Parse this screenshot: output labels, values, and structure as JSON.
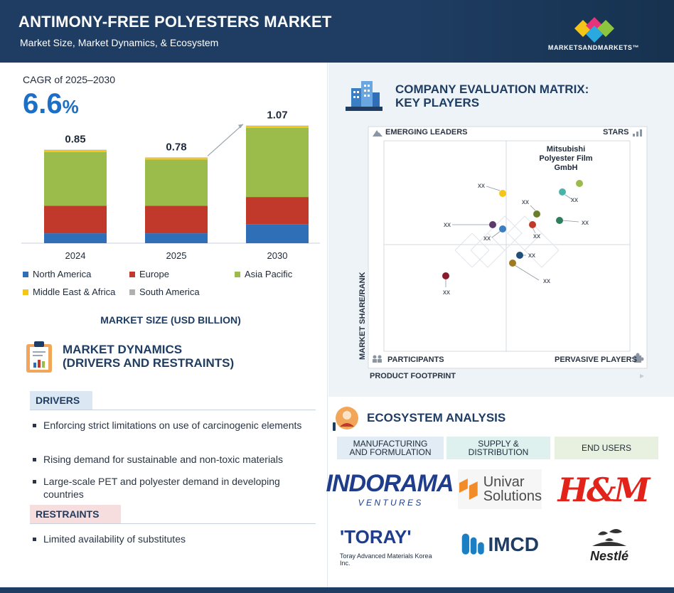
{
  "header": {
    "title": "ANTIMONY-FREE POLYESTERS MARKET",
    "subtitle": "Market Size, Market Dynamics, & Ecosystem",
    "logo_text": "MARKETSANDMARKETS™"
  },
  "cagr": {
    "label": "CAGR of 2025–2030",
    "value": "6.6",
    "unit": "%"
  },
  "chart_data": {
    "type": "bar",
    "stacked": true,
    "categories": [
      "2024",
      "2025",
      "2030"
    ],
    "totals_labels": [
      "0.85",
      "0.78",
      "1.07"
    ],
    "totals": [
      0.85,
      0.78,
      1.07
    ],
    "series": [
      {
        "name": "North America",
        "color": "#2f6fb7",
        "values": [
          0.09,
          0.09,
          0.17
        ]
      },
      {
        "name": "Europe",
        "color": "#c0392b",
        "values": [
          0.25,
          0.25,
          0.25
        ]
      },
      {
        "name": "Asia Pacific",
        "color": "#9bbb4a",
        "values": [
          0.49,
          0.42,
          0.63
        ]
      },
      {
        "name": "Middle East & Africa",
        "color": "#f5c518",
        "values": [
          0.015,
          0.015,
          0.018
        ]
      },
      {
        "name": "South America",
        "color": "#b0b0b0",
        "values": [
          0.005,
          0.005,
          0.002
        ]
      }
    ],
    "ylim": [
      0,
      1.1
    ],
    "title": "MARKET SIZE (USD BILLION)",
    "grid": false,
    "legend_placement": "bottom"
  },
  "dynamics": {
    "title_line1": "MARKET DYNAMICS",
    "title_line2": "(DRIVERS AND RESTRAINTS)",
    "drivers_label": "DRIVERS",
    "drivers": [
      "Enforcing strict limitations on use of carcinogenic elements",
      "Rising demand for sustainable and non-toxic materials",
      "Large-scale PET and polyester demand in developing countries"
    ],
    "restraints_label": "RESTRAINTS",
    "restraints": [
      "Limited availability of substitutes"
    ]
  },
  "matrix": {
    "title_line1": "COMPANY EVALUATION MATRIX:",
    "title_line2": "KEY PLAYERS",
    "quadrants": {
      "top_left": "EMERGING LEADERS",
      "top_right": "STARS",
      "bottom_left": "PARTICIPANTS",
      "bottom_right": "PERVASIVE PLAYERS"
    },
    "y_axis": "MARKET SHARE/RANK",
    "x_axis": "PRODUCT FOOTPRINT",
    "named_player": "Mitsubishi Polyester Film GmbH",
    "placeholder": "xx",
    "points": [
      {
        "color": "#9bbb4a",
        "label": "Mitsubishi Polyester Film GmbH"
      },
      {
        "color": "#4ab3a8",
        "label": "xx"
      },
      {
        "color": "#f5c518",
        "label": "xx"
      },
      {
        "color": "#6b7f2a",
        "label": "xx"
      },
      {
        "color": "#2e7d5b",
        "label": "xx"
      },
      {
        "color": "#5b3a6e",
        "label": "xx"
      },
      {
        "color": "#3a7fc4",
        "label": "xx"
      },
      {
        "color": "#c0392b",
        "label": "xx"
      },
      {
        "color": "#1f4f7a",
        "label": "xx"
      },
      {
        "color": "#a07a1f",
        "label": "xx"
      },
      {
        "color": "#8b1a2b",
        "label": "xx"
      }
    ]
  },
  "ecosystem": {
    "title": "ECOSYSTEM ANALYSIS",
    "columns": [
      {
        "label_line1": "MANUFACTURING",
        "label_line2": "AND FORMULATION",
        "color": "#e1ecf5"
      },
      {
        "label_line1": "SUPPLY &",
        "label_line2": "DISTRIBUTION",
        "color": "#dff1ee"
      },
      {
        "label_line1": "END USERS",
        "label_line2": "",
        "color": "#e8f0df"
      }
    ],
    "logos": {
      "indorama_main": "INDORAMA",
      "indorama_sub": "V E N T U R E S",
      "toray_main": "'TORAY'",
      "toray_sub": "Toray Advanced Materials Korea Inc.",
      "univar_main": "Univar",
      "univar_sub": "Solutions",
      "imcd": "IMCD",
      "hm": "H&M",
      "nestle": "Nestlé"
    }
  }
}
